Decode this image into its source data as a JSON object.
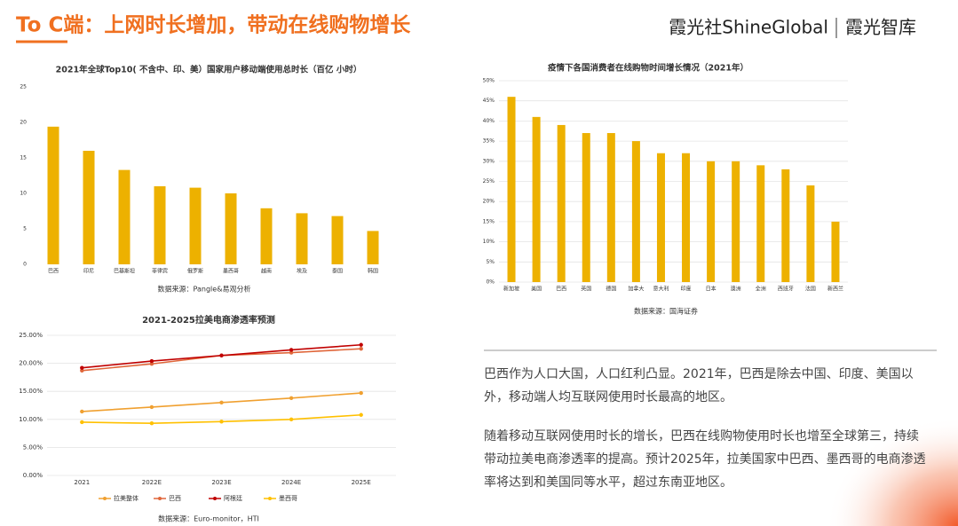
{
  "header": {
    "title": "To C端：上网时长增加，带动在线购物增长",
    "brand": "霞光社ShineGlobal",
    "brand_sub": "霞光智库"
  },
  "chart_data": [
    {
      "type": "bar",
      "title": "2021年全球Top10( 不含中、印、美）国家用户移动端使用总时长（百亿 小时）",
      "categories": [
        "巴西",
        "印尼",
        "巴基斯坦",
        "菲律宾",
        "俄罗斯",
        "墨西哥",
        "越南",
        "埃及",
        "泰国",
        "韩国"
      ],
      "values": [
        19.4,
        16,
        13.3,
        11,
        10.8,
        10,
        7.9,
        7.2,
        6.8,
        4.7
      ],
      "color": "#edb100",
      "ylim": [
        0,
        25
      ],
      "yticks": [
        0,
        5,
        10,
        15,
        20,
        25
      ],
      "grid": false,
      "source": "数据来源：Pangle&易观分析"
    },
    {
      "type": "bar",
      "title": "疫情下各国消费者在线购物时间增长情况（2021年）",
      "categories": [
        "新加坡",
        "美国",
        "巴西",
        "英国",
        "德国",
        "加拿大",
        "意大利",
        "印度",
        "日本",
        "澳洲",
        "全洲",
        "西班牙",
        "法国",
        "新西兰"
      ],
      "values": [
        46,
        41,
        39,
        37,
        37,
        35,
        32,
        32,
        30,
        30,
        29,
        28,
        24,
        15
      ],
      "color": "#edb100",
      "ylim": [
        0,
        50
      ],
      "yticks": [
        {
          "value": 0,
          "label": "0%"
        },
        {
          "value": 5,
          "label": "5%"
        },
        {
          "value": 10,
          "label": "10%"
        },
        {
          "value": 15,
          "label": "15%"
        },
        {
          "value": 20,
          "label": "20%"
        },
        {
          "value": 25,
          "label": "25%"
        },
        {
          "value": 30,
          "label": "30%"
        },
        {
          "value": 35,
          "label": "35%"
        },
        {
          "value": 40,
          "label": "40%"
        },
        {
          "value": 45,
          "label": "45%"
        },
        {
          "value": 50,
          "label": "50%"
        }
      ],
      "grid": true,
      "source": "数据来源：国海证券"
    },
    {
      "type": "line",
      "title": "2021-2025拉美电商渗透率预测",
      "categories": [
        "2021",
        "2022E",
        "2023E",
        "2024E",
        "2025E"
      ],
      "series": [
        {
          "name": "拉美整体",
          "color": "#f0a030",
          "values": [
            11.4,
            12.2,
            13.0,
            13.8,
            14.7
          ]
        },
        {
          "name": "巴西",
          "color": "#e0663a",
          "values": [
            18.7,
            19.9,
            21.4,
            21.9,
            22.6
          ]
        },
        {
          "name": "阿根廷",
          "color": "#c00000",
          "values": [
            19.2,
            20.4,
            21.4,
            22.4,
            23.3
          ]
        },
        {
          "name": "墨西哥",
          "color": "#ffc000",
          "values": [
            9.5,
            9.3,
            9.6,
            10.0,
            10.8
          ]
        }
      ],
      "ylim": [
        0,
        25
      ],
      "yticks": [
        {
          "value": 0,
          "label": "0.00%"
        },
        {
          "value": 5,
          "label": "5.00%"
        },
        {
          "value": 10,
          "label": "10.00%"
        },
        {
          "value": 15,
          "label": "15.00%"
        },
        {
          "value": 20,
          "label": "20.00%"
        },
        {
          "value": 25,
          "label": "25.00%"
        }
      ],
      "grid": true,
      "source": "数据来源：Euro-monitor，HTI"
    }
  ],
  "paragraphs": [
    "巴西作为人口大国，人口红利凸显。2021年，巴西是除去中国、印度、美国以外，移动端人均互联网使用时长最高的地区。",
    "随着移动互联网使用时长的增长，巴西在线购物使用时长也增至全球第三，持续带动拉美电商渗透率的提高。预计2025年，拉美国家中巴西、墨西哥的电商渗透率将达到和美国同等水平，超过东南亚地区。"
  ]
}
